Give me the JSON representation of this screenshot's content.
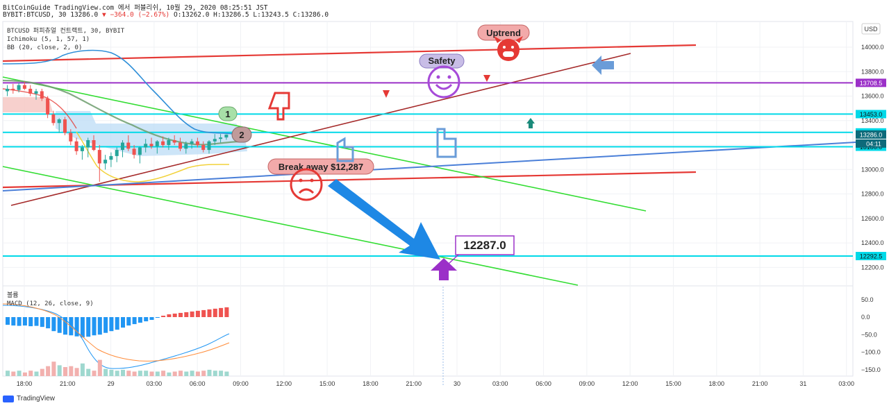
{
  "header": {
    "line1": "BitCoinGuide TradingView.com 에서 퍼블리쉬, 10월 29, 2020 08:25:51 JST",
    "line2_prefix": "BYBIT:BTCUSD, 30 13286.0",
    "line2_change": "▼ −364.0 (−2.67%)",
    "line2_ohlc": "O:13262.0 H:13286.5 L:13243.5 C:13286.0"
  },
  "legend": {
    "symbol": "BTCUSD 퍼피츄얼 컨트랙트, 30, BYBIT",
    "ichimoku": "Ichimoku (5, 1, 57, 1)",
    "bb": "BB (20, close, 2, 0)",
    "volume": "볼륨",
    "macd": "MACD (12, 26, close, 9)"
  },
  "currency": "USD",
  "footer": "TradingView",
  "colors": {
    "up": "#26a69a",
    "down": "#ef5350",
    "trend_red": "#e53935",
    "trend_green": "#33dd33",
    "trend_brown": "#a52a2a",
    "trend_blue": "#4a7fd8",
    "hline_cyan": "#00d9e8",
    "hline_purple": "#9b30c8",
    "arrow_blue": "#1e88e5",
    "arrow_purple": "#9b30c8"
  },
  "chart_data": {
    "type": "candlestick",
    "x_ticks": [
      "18:00",
      "21:00",
      "29",
      "03:00",
      "06:00",
      "09:00",
      "12:00",
      "15:00",
      "18:00",
      "21:00",
      "30",
      "03:00",
      "06:00",
      "09:00",
      "12:00",
      "15:00",
      "18:00",
      "21:00",
      "31",
      "03:00"
    ],
    "y_ticks": [
      "14000.0",
      "13800.0",
      "13600.0",
      "13400.0",
      "13200.0",
      "13000.0",
      "12800.0",
      "12600.0",
      "12400.0",
      "12200.0"
    ],
    "ylim": [
      12100,
      14200
    ],
    "macd_ticks": [
      "50.0",
      "0.0",
      "−50.0",
      "−100.0",
      "−150.0"
    ],
    "macd_ylim": [
      -165,
      75
    ],
    "price_labels": [
      {
        "value": 13708.5,
        "text": "13708.5",
        "color": "#9b30c8"
      },
      {
        "value": 13453.0,
        "text": "13453.0",
        "color": "#00d9e8"
      },
      {
        "value": 13303.5,
        "text": "13303.5",
        "color": "#00d9e8"
      },
      {
        "value": 13286.0,
        "text": "13286.0",
        "color": "#0d6a7a"
      },
      {
        "value": 13186.0,
        "text": "13186.0",
        "color": "#00d9e8"
      },
      {
        "value": 12292.5,
        "text": "12292.5",
        "color": "#00d9e8"
      }
    ],
    "countdown": "04:11",
    "candles": [
      [
        13640,
        13690,
        13600,
        13660
      ],
      [
        13660,
        13700,
        13620,
        13650
      ],
      [
        13650,
        13710,
        13630,
        13690
      ],
      [
        13690,
        13720,
        13650,
        13660
      ],
      [
        13660,
        13690,
        13600,
        13620
      ],
      [
        13620,
        13660,
        13570,
        13640
      ],
      [
        13640,
        13660,
        13560,
        13580
      ],
      [
        13580,
        13600,
        13420,
        13450
      ],
      [
        13450,
        13480,
        13360,
        13380
      ],
      [
        13380,
        13420,
        13300,
        13410
      ],
      [
        13410,
        13430,
        13280,
        13300
      ],
      [
        13300,
        13330,
        13200,
        13230
      ],
      [
        13230,
        13260,
        13120,
        13150
      ],
      [
        13150,
        13200,
        13080,
        13180
      ],
      [
        13180,
        13260,
        13100,
        13240
      ],
      [
        13240,
        13280,
        13150,
        13160
      ],
      [
        13160,
        13200,
        12900,
        13050
      ],
      [
        13050,
        13120,
        13000,
        13080
      ],
      [
        13080,
        13140,
        13020,
        13110
      ],
      [
        13110,
        13180,
        13060,
        13160
      ],
      [
        13160,
        13240,
        13100,
        13220
      ],
      [
        13220,
        13280,
        13150,
        13170
      ],
      [
        13170,
        13200,
        13090,
        13120
      ],
      [
        13120,
        13190,
        13050,
        13180
      ],
      [
        13180,
        13250,
        13140,
        13210
      ],
      [
        13210,
        13260,
        13170,
        13190
      ],
      [
        13190,
        13240,
        13130,
        13230
      ],
      [
        13230,
        13270,
        13180,
        13200
      ],
      [
        13200,
        13260,
        13160,
        13240
      ],
      [
        13240,
        13280,
        13200,
        13220
      ],
      [
        13220,
        13260,
        13150,
        13170
      ],
      [
        13170,
        13230,
        13130,
        13210
      ],
      [
        13210,
        13250,
        13170,
        13230
      ],
      [
        13230,
        13260,
        13180,
        13200
      ],
      [
        13200,
        13230,
        13140,
        13160
      ],
      [
        13160,
        13240,
        13130,
        13230
      ],
      [
        13230,
        13290,
        13200,
        13250
      ],
      [
        13250,
        13290,
        13220,
        13262
      ],
      [
        13262,
        13287,
        13243,
        13286
      ]
    ],
    "macd_hist": [
      -22,
      -24,
      -25,
      -24,
      -26,
      -25,
      -28,
      -32,
      -40,
      -45,
      -50,
      -52,
      -55,
      -58,
      -56,
      -52,
      -50,
      -45,
      -40,
      -36,
      -30,
      -24,
      -20,
      -16,
      -12,
      -8,
      -2,
      4,
      8,
      10,
      12,
      14,
      16,
      18,
      20,
      22,
      24,
      26,
      28
    ],
    "volume_rel": [
      0.3,
      0.25,
      0.3,
      0.2,
      0.3,
      0.25,
      0.4,
      0.55,
      0.8,
      0.6,
      0.5,
      0.55,
      0.45,
      0.7,
      0.4,
      0.3,
      0.9,
      0.4,
      0.35,
      0.3,
      0.35,
      0.3,
      0.25,
      0.3,
      0.3,
      0.25,
      0.25,
      0.3,
      0.2,
      0.25,
      0.3,
      0.25,
      0.3,
      0.25,
      0.3,
      0.35,
      0.3,
      0.3,
      0.25
    ]
  },
  "annotations": {
    "uptrend": "Uptrend",
    "safety": "Safety",
    "breakaway": "Break away $12,287",
    "target": "12287.0",
    "n1": "1",
    "n2": "2"
  }
}
